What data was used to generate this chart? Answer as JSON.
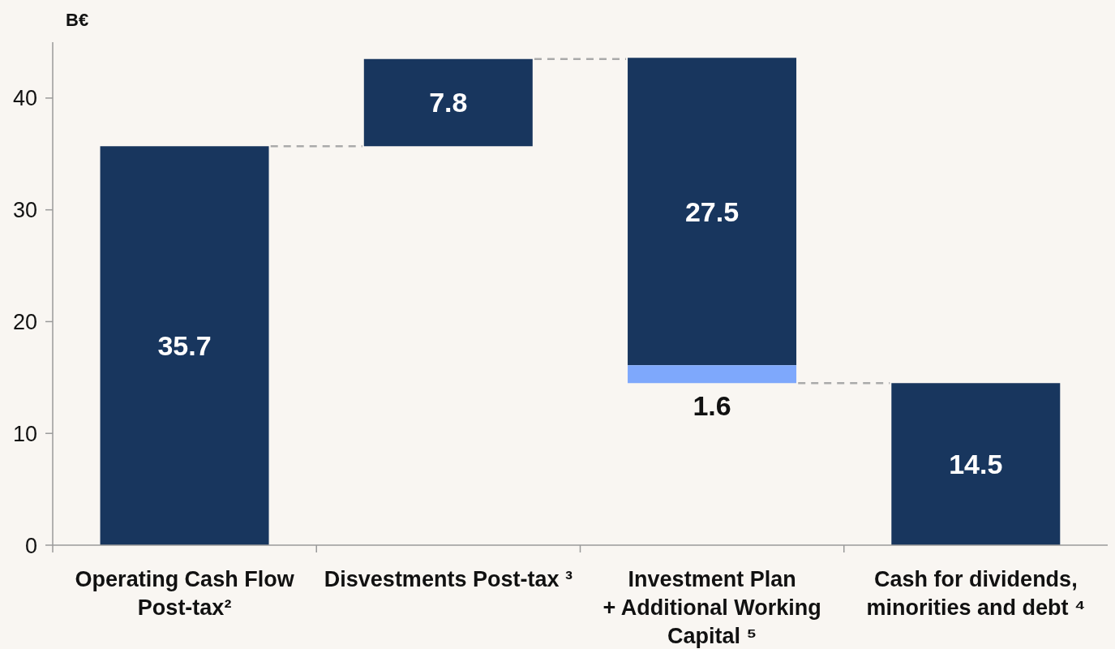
{
  "chart_data": {
    "type": "bar",
    "ylabel": "B€",
    "categories": [
      "Operating Cash Flow Post-tax²",
      "Disvestments Post-tax ³",
      "Investment Plan + Additional Working Capital ⁵",
      "Cash for dividends, minorities and debt ⁴"
    ],
    "series": [
      {
        "color": "#18365e",
        "values": [
          35.7,
          7.8,
          27.5,
          14.5
        ],
        "base": [
          0,
          35.7,
          16.1,
          0
        ]
      },
      {
        "color": "#7ea8fc",
        "values": [
          null,
          null,
          1.6,
          null
        ],
        "base": [
          null,
          null,
          14.5,
          null
        ]
      }
    ],
    "ylim": [
      0,
      45
    ],
    "yticks": [
      0,
      10,
      20,
      30,
      40
    ],
    "data_labels": true
  }
}
